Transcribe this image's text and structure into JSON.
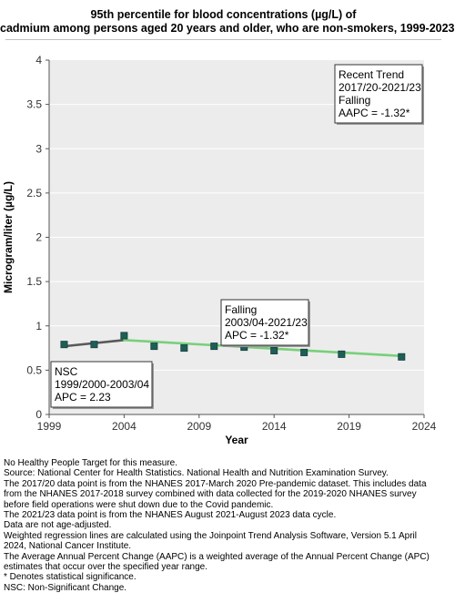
{
  "chart_data": {
    "type": "line",
    "title": [
      "95th percentile for blood concentrations (µg/L) of",
      "cadmium among persons aged 20 years and older, who are non-smokers, 1999-2023"
    ],
    "xlabel": "Year",
    "ylabel": "Microgram/liter (µg/L)",
    "xlim": [
      1999,
      2024
    ],
    "ylim": [
      0,
      4
    ],
    "x_ticks": [
      "1999",
      "2004",
      "2009",
      "2014",
      "2019",
      "2024"
    ],
    "y_ticks": [
      "0",
      "0.5",
      "1",
      "1.5",
      "2",
      "2.5",
      "3",
      "3.5",
      "4"
    ],
    "grid": "horizontal",
    "points": {
      "x": [
        2000,
        2002,
        2004,
        2006,
        2008,
        2010,
        2012,
        2014,
        2016,
        2018.5,
        2022.5
      ],
      "y": [
        0.79,
        0.79,
        0.89,
        0.77,
        0.75,
        0.77,
        0.76,
        0.72,
        0.7,
        0.68,
        0.65
      ]
    },
    "trend_segments": [
      {
        "x": [
          2000,
          2004
        ],
        "y": [
          0.77,
          0.84
        ],
        "color": "#595959"
      },
      {
        "x": [
          2004,
          2022.5
        ],
        "y": [
          0.84,
          0.66
        ],
        "color": "#77d07a"
      }
    ],
    "annotations": [
      {
        "lines": [
          "Recent Trend",
          "2017/20-2021/23",
          "Falling",
          "AAPC = -1.32*"
        ]
      },
      {
        "lines": [
          "Falling",
          "2003/04-2021/23",
          "APC = -1.32*"
        ]
      },
      {
        "lines": [
          "NSC",
          "1999/2000-2003/04",
          "APC =  2.23"
        ]
      }
    ],
    "colors": {
      "marker": "#1f5e57",
      "marker_edge": "#12403b",
      "plot_bg": "#ececec",
      "grid": "#ffffff"
    }
  },
  "notes": [
    "No Healthy People Target for this measure.",
    "Source: National Center for Health Statistics. National Health and Nutrition Examination Survey.",
    "The 2017/20 data point is from the NHANES 2017-March 2020 Pre-pandemic dataset. This includes data",
    "from the NHANES 2017-2018 survey combined with data collected for the 2019-2020 NHANES survey",
    "before field operations were shut down due to the Covid pandemic.",
    "The 2021/23 data point is from the NHANES August 2021-August 2023 data cycle.",
    "Data are not age-adjusted.",
    "Weighted regression lines are calculated using the Joinpoint Trend Analysis Software, Version 5.1 April",
    "2024, National Cancer Institute.",
    "The Average Annual Percent Change (AAPC) is a weighted average of the Annual Percent Change (APC)",
    "estimates that occur over the specified year range.",
    "* Denotes statistical significance.",
    "NSC: Non-Significant Change."
  ]
}
